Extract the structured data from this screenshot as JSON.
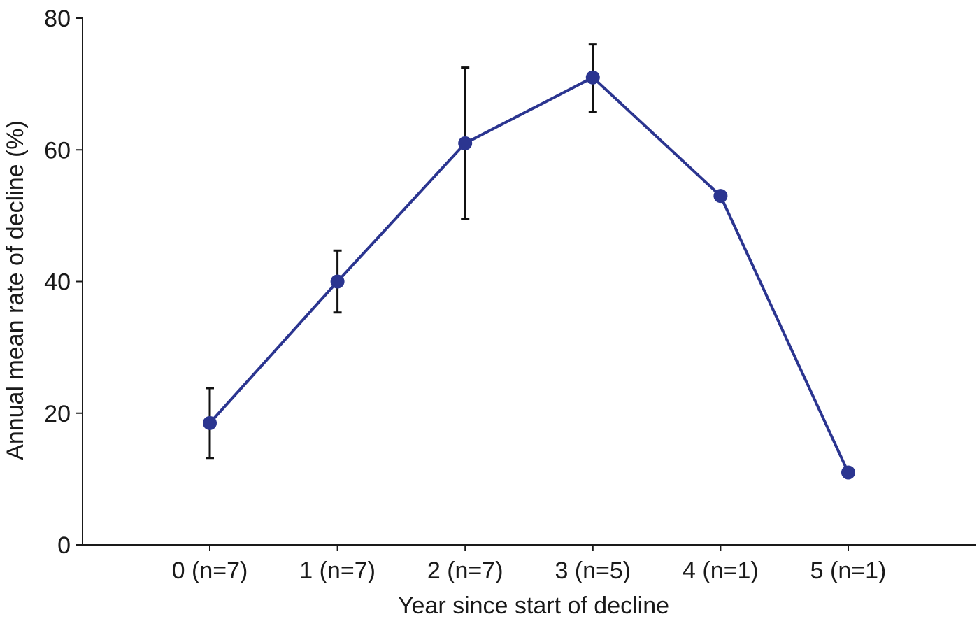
{
  "chart_data": {
    "type": "line",
    "xlabel": "Year since start of decline",
    "ylabel": "Annual mean rate of decline (%)",
    "categories": [
      "0 (n=7)",
      "1 (n=7)",
      "2 (n=7)",
      "3 (n=5)",
      "4 (n=1)",
      "5 (n=1)"
    ],
    "series": [
      {
        "values": [
          18.5,
          40,
          61,
          71,
          53,
          11
        ],
        "error_low": [
          13.2,
          35.3,
          49.5,
          65.8,
          null,
          null
        ],
        "error_high": [
          23.8,
          44.7,
          72.5,
          76,
          null,
          null
        ],
        "color": "#2b3590"
      }
    ],
    "ylim": [
      0,
      80
    ],
    "yticks": [
      0,
      20,
      40,
      60,
      80
    ],
    "ytick_labels": [
      "0",
      "20",
      "40",
      "60",
      "80"
    ],
    "grid": false,
    "legend": "none"
  }
}
